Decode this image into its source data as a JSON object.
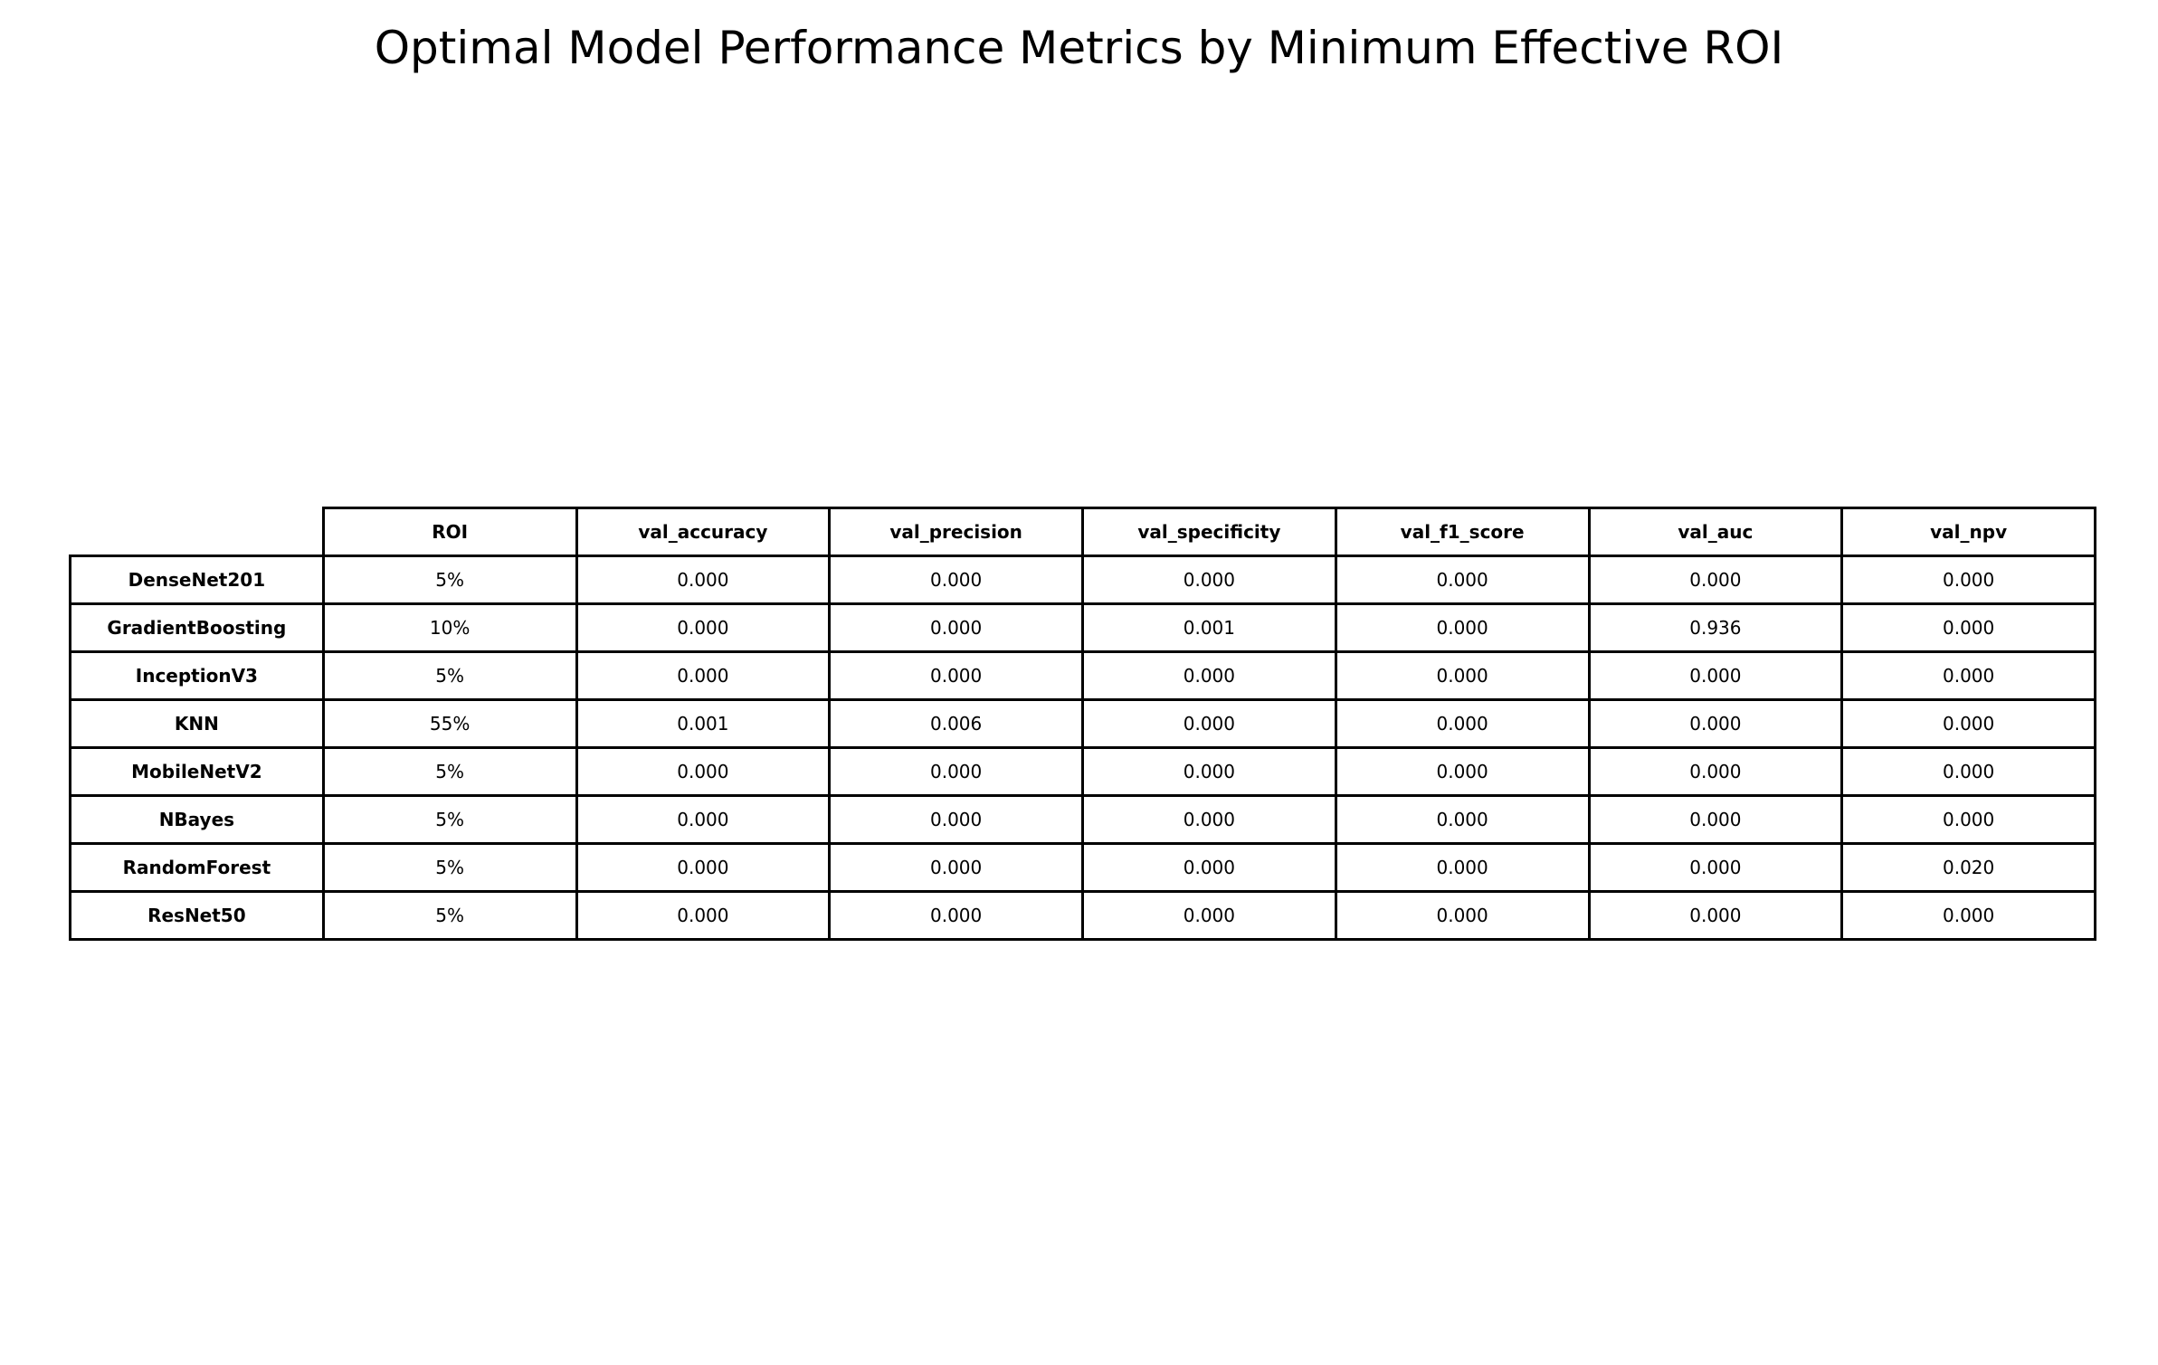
{
  "chart_data": {
    "type": "table",
    "title": "Optimal Model Performance Metrics by Minimum Effective ROI",
    "columns": [
      "ROI",
      "val_accuracy",
      "val_precision",
      "val_specificity",
      "val_f1_score",
      "val_auc",
      "val_npv"
    ],
    "rows": [
      {
        "label": "DenseNet201",
        "values": [
          "5%",
          "0.000",
          "0.000",
          "0.000",
          "0.000",
          "0.000",
          "0.000"
        ]
      },
      {
        "label": "GradientBoosting",
        "values": [
          "10%",
          "0.000",
          "0.000",
          "0.001",
          "0.000",
          "0.936",
          "0.000"
        ]
      },
      {
        "label": "InceptionV3",
        "values": [
          "5%",
          "0.000",
          "0.000",
          "0.000",
          "0.000",
          "0.000",
          "0.000"
        ]
      },
      {
        "label": "KNN",
        "values": [
          "55%",
          "0.001",
          "0.006",
          "0.000",
          "0.000",
          "0.000",
          "0.000"
        ]
      },
      {
        "label": "MobileNetV2",
        "values": [
          "5%",
          "0.000",
          "0.000",
          "0.000",
          "0.000",
          "0.000",
          "0.000"
        ]
      },
      {
        "label": "NBayes",
        "values": [
          "5%",
          "0.000",
          "0.000",
          "0.000",
          "0.000",
          "0.000",
          "0.000"
        ]
      },
      {
        "label": "RandomForest",
        "values": [
          "5%",
          "0.000",
          "0.000",
          "0.000",
          "0.000",
          "0.000",
          "0.020"
        ]
      },
      {
        "label": "ResNet50",
        "values": [
          "5%",
          "0.000",
          "0.000",
          "0.000",
          "0.000",
          "0.000",
          "0.000"
        ]
      }
    ]
  }
}
